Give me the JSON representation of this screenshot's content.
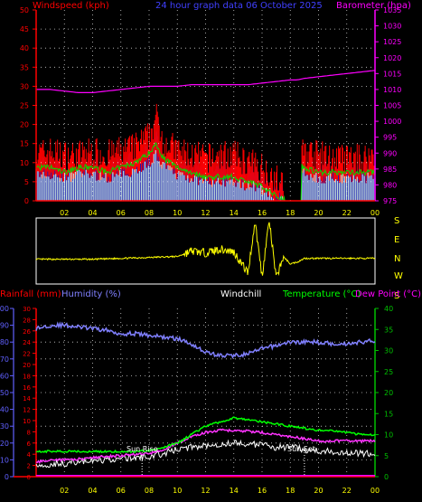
{
  "header": {
    "left_title": "Windspeed (kph)",
    "center_title": "24 hour graph data   06 October 2025",
    "right_title": "Barometer (hpa)"
  },
  "colors": {
    "background": "#000000",
    "frame_red": "#ff0000",
    "axis_white": "#ffffff",
    "wind_gust": "#ff0000",
    "wind_avg": "#e0ffe0",
    "wind_dark": "#1a1ab0",
    "barometer": "#ff00ff",
    "direction": "#ffff00",
    "humidity": "#8080ff",
    "temperature": "#00ff00",
    "dewpoint": "#ffffff",
    "windchill": "#ffffff",
    "rain": "#ff00ff",
    "green_axis": "#00c000",
    "cyan_axis": "#6060ff",
    "day_labels": "#ffff00"
  },
  "chart_data": [
    {
      "type": "area",
      "title": "24 hour graph data   06 October 2025",
      "ylabel": "Windspeed (kph)",
      "y2label": "Barometer (hpa)",
      "x_ticks": [
        "02",
        "04",
        "06",
        "08",
        "10",
        "12",
        "14",
        "16",
        "18",
        "20",
        "22",
        "00"
      ],
      "y_ticks": [
        "0",
        "5",
        "10",
        "15",
        "20",
        "25",
        "30",
        "35",
        "40",
        "45",
        "50"
      ],
      "y2_ticks": [
        "975",
        "980",
        "985",
        "990",
        "995",
        "1000",
        "1005",
        "1010",
        "1015",
        "1020",
        "1025",
        "1030",
        "1035"
      ],
      "ylim": [
        0,
        50
      ],
      "y2lim": [
        975,
        1035
      ],
      "x_hours": [
        0,
        1,
        2,
        3,
        4,
        5,
        6,
        7,
        8,
        8.5,
        9,
        10,
        11,
        12,
        13,
        14,
        15,
        16,
        17,
        18,
        18.5,
        19,
        20,
        21,
        22,
        23,
        24
      ],
      "series": [
        {
          "values": [
            12,
            13,
            12,
            12,
            13,
            12,
            13,
            14,
            17,
            22,
            16,
            13,
            12,
            11,
            12,
            12,
            10,
            9,
            6,
            1,
            14,
            13,
            12,
            11,
            11,
            11,
            12
          ]
        },
        {
          "values": [
            7,
            7,
            6,
            7,
            7,
            6,
            7,
            8,
            10,
            12,
            9,
            7,
            6,
            5,
            5,
            5,
            4,
            3,
            1,
            0,
            8,
            7,
            6,
            6,
            6,
            6,
            6
          ]
        },
        {
          "values": [
            1010,
            1010,
            1009.5,
            1009,
            1009,
            1009.5,
            1010,
            1010.5,
            1011,
            1011,
            1011,
            1011,
            1011.5,
            1011.5,
            1011.5,
            1011.5,
            1011.5,
            1012,
            1012.5,
            1013,
            1013,
            1013.5,
            1014,
            1014.5,
            1015,
            1015.5,
            1016
          ]
        }
      ]
    },
    {
      "type": "line",
      "title": "",
      "y_labels": [
        "S",
        "E",
        "N",
        "W",
        "S"
      ],
      "x_hours": [
        0,
        2,
        4,
        6,
        8,
        10,
        11,
        12,
        13,
        14,
        15,
        15.5,
        16,
        16.5,
        17,
        17.5,
        18,
        18.5,
        19,
        20,
        22,
        24
      ],
      "values": [
        135,
        135,
        135,
        140,
        145,
        150,
        180,
        170,
        190,
        175,
        60,
        340,
        40,
        350,
        30,
        150,
        110,
        120,
        140,
        140,
        140,
        140
      ]
    },
    {
      "type": "line",
      "title": "",
      "legend": [
        "Rainfall (mm)",
        "Humidity (%)",
        "Windchill",
        "Temperature (°C)",
        "Dew Point (°C)"
      ],
      "x_ticks": [
        "02",
        "04",
        "06",
        "08",
        "10",
        "12",
        "14",
        "16",
        "18",
        "20",
        "22",
        "00"
      ],
      "humidity_ticks": [
        "0",
        "10",
        "20",
        "30",
        "40",
        "50",
        "60",
        "70",
        "80",
        "90",
        "100"
      ],
      "rain_ticks": [
        "0",
        "2",
        "4",
        "6",
        "8",
        "10",
        "12",
        "14",
        "16",
        "18",
        "20",
        "22",
        "24",
        "26",
        "28",
        "30"
      ],
      "temp_ticks": [
        "0",
        "5",
        "10",
        "15",
        "20",
        "25",
        "30",
        "35",
        "40"
      ],
      "ylim_humidity": [
        0,
        100
      ],
      "ylim_rain": [
        0,
        30
      ],
      "ylim_temp": [
        0,
        40
      ],
      "annotations": [
        "Sun Rise",
        "Sun Set"
      ],
      "sunrise_hour": 7.5,
      "sunset_hour": 19,
      "x_hours": [
        0,
        1,
        2,
        3,
        4,
        5,
        6,
        7,
        8,
        9,
        10,
        11,
        12,
        13,
        14,
        15,
        16,
        17,
        18,
        19,
        20,
        21,
        22,
        23,
        24
      ],
      "series": [
        {
          "name": "Humidity (%)",
          "values": [
            88,
            90,
            90,
            89,
            88,
            87,
            85,
            85,
            84,
            83,
            82,
            79,
            74,
            72,
            72,
            73,
            76,
            78,
            80,
            80,
            80,
            79,
            79,
            80,
            81
          ]
        },
        {
          "name": "Temperature (°C)",
          "values": [
            6,
            6,
            6,
            6,
            6,
            6,
            6,
            6,
            6.2,
            7,
            8,
            10,
            12,
            13,
            14,
            13.5,
            13,
            12.5,
            12,
            11.5,
            11,
            11,
            10.5,
            10,
            10
          ]
        },
        {
          "name": "Dew Point (°C)",
          "values": [
            3.5,
            3.8,
            4,
            4.2,
            4.5,
            4.8,
            5,
            5.3,
            5.5,
            6.5,
            8,
            9.5,
            10.5,
            11,
            11,
            10.8,
            10.5,
            10,
            9.5,
            9,
            8.5,
            8.5,
            8.5,
            8.5,
            8.5
          ]
        },
        {
          "name": "Windchill",
          "values": [
            2.5,
            3,
            3.2,
            3.5,
            3.8,
            4,
            4.2,
            4.5,
            4.8,
            5.5,
            6.5,
            7,
            7.5,
            7.8,
            8,
            7.8,
            7.5,
            7,
            7,
            6.5,
            6,
            6,
            5.8,
            5.5,
            5.5
          ]
        },
        {
          "name": "Rainfall (mm)",
          "values": [
            0.2,
            0.2,
            0.2,
            0.2,
            0.2,
            0.2,
            0.2,
            0.2,
            0.2,
            0.2,
            0.2,
            0.2,
            0.2,
            0.2,
            0.2,
            0.2,
            0.2,
            0.2,
            0.2,
            0.2,
            0.2,
            0.2,
            0.2,
            0.2,
            0.2
          ]
        }
      ]
    }
  ]
}
